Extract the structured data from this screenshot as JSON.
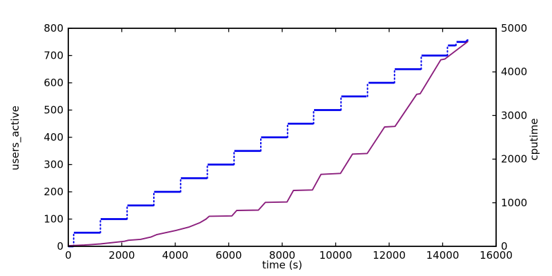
{
  "figure": {
    "background": "#ffffff",
    "spine_color": "#000000",
    "tick_color": "#000000"
  },
  "chart_data": {
    "type": "line",
    "title": "",
    "xlabel": "time (s)",
    "ylabel_left": "users_active",
    "ylabel_right": "cputime",
    "xlim": [
      0,
      16000
    ],
    "ylim_left": [
      0,
      800
    ],
    "ylim_right": [
      0,
      5000
    ],
    "x_ticks": [
      0,
      2000,
      4000,
      6000,
      8000,
      10000,
      12000,
      14000,
      16000
    ],
    "y_ticks_left": [
      0,
      100,
      200,
      300,
      400,
      500,
      600,
      700,
      800
    ],
    "y_ticks_right": [
      0,
      1000,
      2000,
      3000,
      4000,
      5000
    ],
    "grid": false,
    "legend": "none",
    "series": [
      {
        "name": "users_active",
        "axis": "left",
        "color": "#0000ee",
        "style": "steps-dotted-risers",
        "steps": [
          {
            "t0": 0,
            "t1": 190,
            "v": 0
          },
          {
            "t0": 210,
            "t1": 1190,
            "v": 50
          },
          {
            "t0": 1210,
            "t1": 2190,
            "v": 100
          },
          {
            "t0": 2210,
            "t1": 3190,
            "v": 150
          },
          {
            "t0": 3210,
            "t1": 4190,
            "v": 200
          },
          {
            "t0": 4210,
            "t1": 5190,
            "v": 250
          },
          {
            "t0": 5210,
            "t1": 6190,
            "v": 300
          },
          {
            "t0": 6210,
            "t1": 7190,
            "v": 350
          },
          {
            "t0": 7210,
            "t1": 8190,
            "v": 400
          },
          {
            "t0": 8210,
            "t1": 9160,
            "v": 450
          },
          {
            "t0": 9190,
            "t1": 10190,
            "v": 500
          },
          {
            "t0": 10210,
            "t1": 11150,
            "v": 550
          },
          {
            "t0": 11230,
            "t1": 12190,
            "v": 600
          },
          {
            "t0": 12210,
            "t1": 13190,
            "v": 650
          },
          {
            "t0": 13210,
            "t1": 14160,
            "v": 700
          },
          {
            "t0": 14200,
            "t1": 14480,
            "v": 737
          },
          {
            "t0": 14520,
            "t1": 14880,
            "v": 750
          },
          {
            "t0": 14900,
            "t1": 14960,
            "v": 756
          }
        ]
      },
      {
        "name": "cputime",
        "axis": "right",
        "color": "#8b1e7d",
        "style": "line",
        "points": [
          [
            0,
            15
          ],
          [
            600,
            30
          ],
          [
            1200,
            55
          ],
          [
            2100,
            115
          ],
          [
            2250,
            140
          ],
          [
            2700,
            160
          ],
          [
            3100,
            215
          ],
          [
            3300,
            268
          ],
          [
            4000,
            360
          ],
          [
            4500,
            440
          ],
          [
            4930,
            545
          ],
          [
            5150,
            625
          ],
          [
            5270,
            690
          ],
          [
            6120,
            698
          ],
          [
            6300,
            823
          ],
          [
            7110,
            830
          ],
          [
            7370,
            1008
          ],
          [
            8180,
            1018
          ],
          [
            8420,
            1281
          ],
          [
            9130,
            1292
          ],
          [
            9450,
            1650
          ],
          [
            10180,
            1672
          ],
          [
            10630,
            2115
          ],
          [
            11180,
            2130
          ],
          [
            11830,
            2737
          ],
          [
            12220,
            2750
          ],
          [
            13030,
            3486
          ],
          [
            13160,
            3500
          ],
          [
            13930,
            4277
          ],
          [
            14080,
            4295
          ],
          [
            14950,
            4700
          ]
        ]
      }
    ]
  }
}
